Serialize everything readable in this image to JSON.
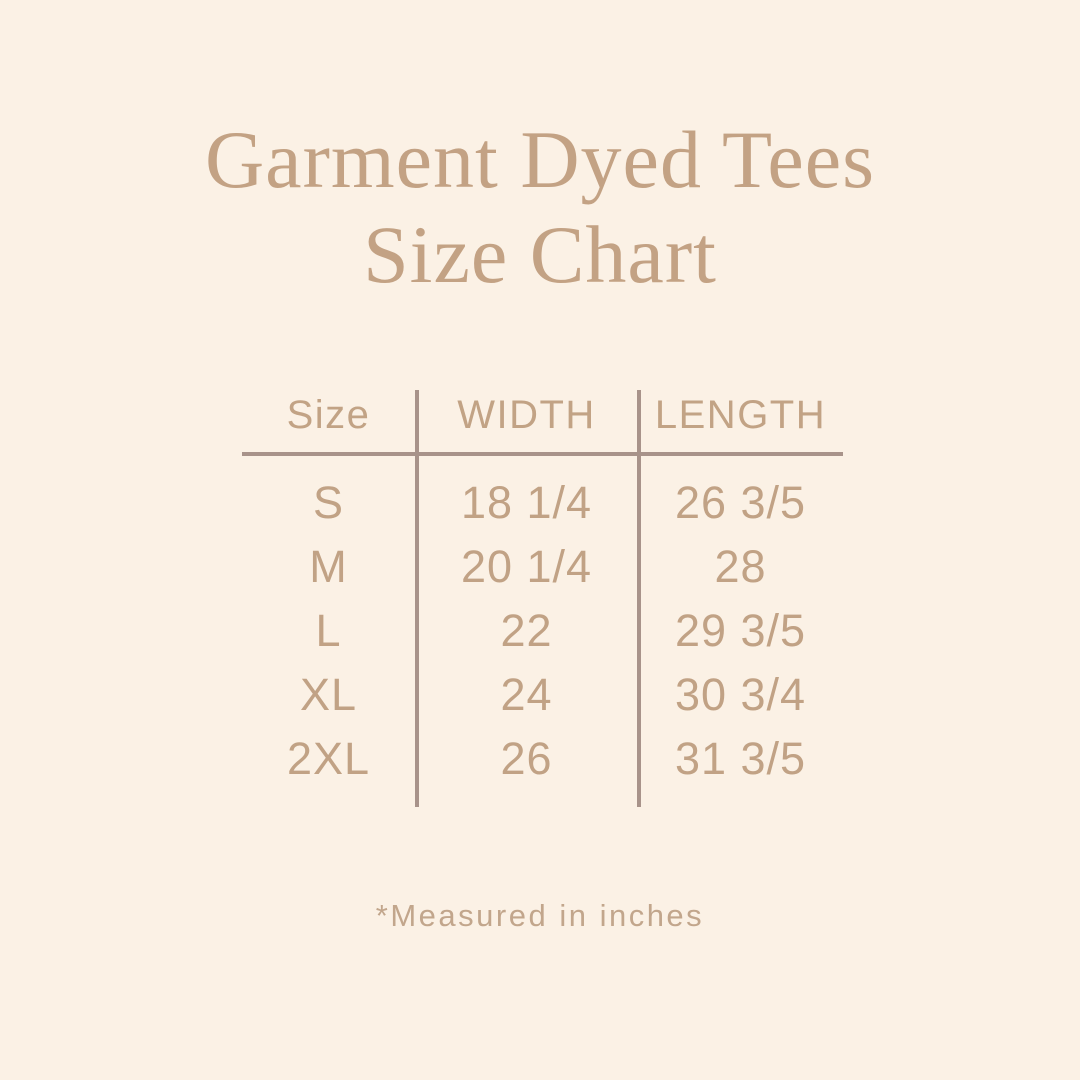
{
  "page": {
    "background_color": "#fbf1e5",
    "accent_text_color": "#c3a284",
    "line_color": "#a8938a"
  },
  "title": {
    "line1": "Garment Dyed Tees",
    "line2": "Size Chart"
  },
  "table": {
    "headers": [
      "Size",
      "WIDTH",
      "LENGTH"
    ],
    "rows": [
      {
        "size": "S",
        "width": "18 1/4",
        "length": "26 3/5"
      },
      {
        "size": "M",
        "width": "20 1/4",
        "length": "28"
      },
      {
        "size": "L",
        "width": "22",
        "length": "29 3/5"
      },
      {
        "size": "XL",
        "width": "24",
        "length": "30 3/4"
      },
      {
        "size": "2XL",
        "width": "26",
        "length": "31 3/5"
      }
    ]
  },
  "footnote": "*Measured in inches",
  "chart_data": {
    "type": "table",
    "title": "Garment Dyed Tees Size Chart",
    "columns": [
      "Size",
      "WIDTH",
      "LENGTH"
    ],
    "rows": [
      [
        "S",
        "18 1/4",
        "26 3/5"
      ],
      [
        "M",
        "20 1/4",
        "28"
      ],
      [
        "L",
        "22",
        "29 3/5"
      ],
      [
        "XL",
        "24",
        "30 3/4"
      ],
      [
        "2XL",
        "26",
        "31 3/5"
      ]
    ],
    "units": "inches",
    "notes": "*Measured in inches"
  }
}
